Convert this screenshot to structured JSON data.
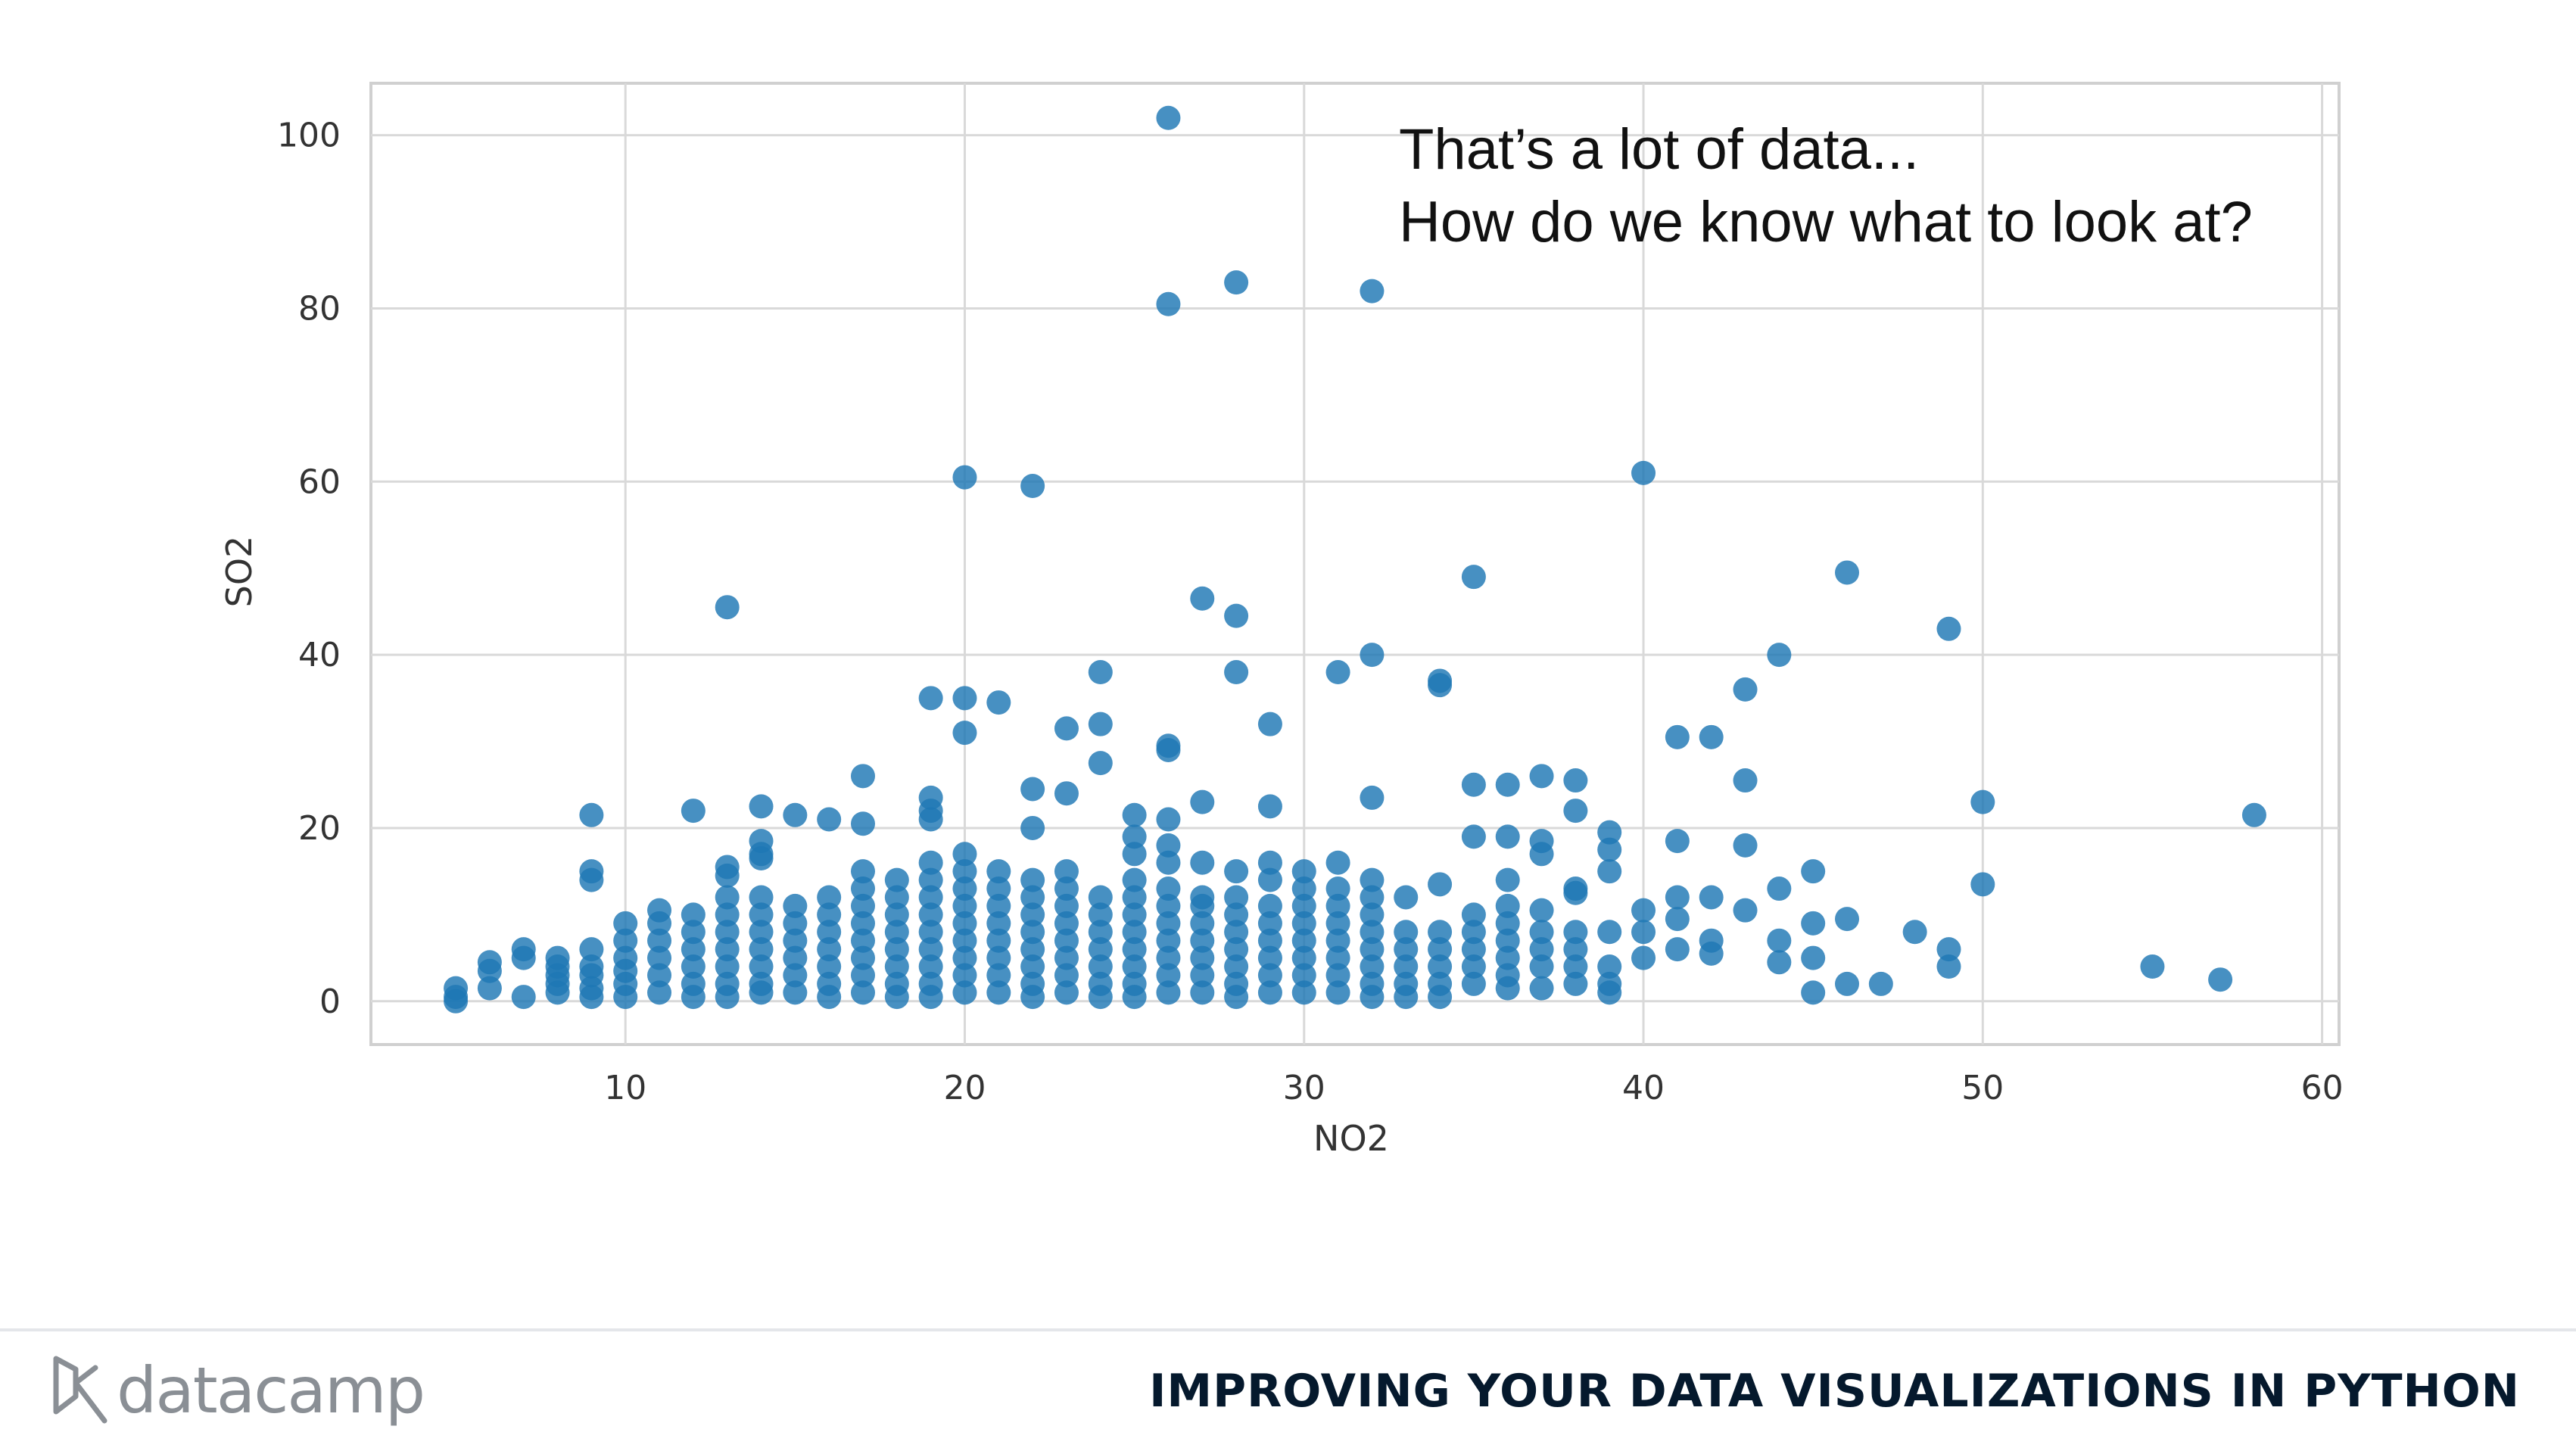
{
  "annotation": {
    "line1": "That’s a lot of data...",
    "line2": "How do we know what to look at?"
  },
  "footer": {
    "logo_text": "datacamp",
    "course_title": "IMPROVING YOUR DATA VISUALIZATIONS IN PYTHON"
  },
  "colors": {
    "point": "#1f77b4",
    "grid": "#d9d9d9",
    "axes_frame": "#d0d0d0",
    "tick_text": "#333333"
  },
  "chart_data": {
    "type": "scatter",
    "xlabel": "NO2",
    "ylabel": "SO2",
    "xlim": [
      2.5,
      60.5
    ],
    "ylim": [
      -5,
      106
    ],
    "xticks": [
      10,
      20,
      30,
      40,
      50,
      60
    ],
    "yticks": [
      0,
      20,
      40,
      60,
      80,
      100
    ],
    "grid": true,
    "series": [
      {
        "points": [
          [
            26,
            102
          ],
          [
            26,
            80.5
          ],
          [
            28,
            83
          ],
          [
            32,
            82
          ],
          [
            20,
            60.5
          ],
          [
            22,
            59.5
          ],
          [
            40,
            61
          ],
          [
            13,
            45.5
          ],
          [
            35,
            49
          ],
          [
            46,
            49.5
          ],
          [
            49,
            43
          ],
          [
            27,
            46.5
          ],
          [
            28,
            44.5
          ],
          [
            32,
            40
          ],
          [
            44,
            40
          ],
          [
            24,
            38
          ],
          [
            28,
            38
          ],
          [
            31,
            38
          ],
          [
            34,
            37
          ],
          [
            34,
            36.5
          ],
          [
            19,
            35
          ],
          [
            20,
            35
          ],
          [
            21,
            34.5
          ],
          [
            43,
            36
          ],
          [
            23,
            31.5
          ],
          [
            24,
            32
          ],
          [
            29,
            32
          ],
          [
            20,
            31
          ],
          [
            41,
            30.5
          ],
          [
            42,
            30.5
          ],
          [
            26,
            29.5
          ],
          [
            26,
            29
          ],
          [
            24,
            27.5
          ],
          [
            17,
            26
          ],
          [
            37,
            26
          ],
          [
            38,
            25.5
          ],
          [
            22,
            24.5
          ],
          [
            23,
            24
          ],
          [
            32,
            23.5
          ],
          [
            35,
            25
          ],
          [
            36,
            25
          ],
          [
            43,
            25.5
          ],
          [
            9,
            21.5
          ],
          [
            12,
            22
          ],
          [
            14,
            22.5
          ],
          [
            15,
            21.5
          ],
          [
            16,
            21
          ],
          [
            17,
            20.5
          ],
          [
            19,
            23.5
          ],
          [
            19,
            22
          ],
          [
            19,
            21
          ],
          [
            22,
            20
          ],
          [
            25,
            21.5
          ],
          [
            26,
            21
          ],
          [
            27,
            23
          ],
          [
            29,
            22.5
          ],
          [
            38,
            22
          ],
          [
            50,
            23
          ],
          [
            58,
            21.5
          ],
          [
            9,
            15
          ],
          [
            9,
            14
          ],
          [
            13,
            15.5
          ],
          [
            13,
            14.5
          ],
          [
            14,
            18.5
          ],
          [
            14,
            17
          ],
          [
            14,
            16.5
          ],
          [
            14,
            12
          ],
          [
            35,
            19
          ],
          [
            36,
            19
          ],
          [
            37,
            18.5
          ],
          [
            37,
            17
          ],
          [
            39,
            19.5
          ],
          [
            39,
            17.5
          ],
          [
            39,
            15
          ],
          [
            41,
            18.5
          ],
          [
            43,
            18
          ],
          [
            45,
            15
          ],
          [
            43,
            10.5
          ],
          [
            44,
            13
          ],
          [
            46,
            9.5
          ],
          [
            48,
            8
          ],
          [
            49,
            6
          ],
          [
            49,
            4
          ],
          [
            50,
            13.5
          ],
          [
            55,
            4
          ],
          [
            57,
            2.5
          ],
          [
            46,
            2
          ],
          [
            47,
            2
          ],
          [
            45,
            1
          ],
          [
            45,
            5
          ],
          [
            45,
            9
          ],
          [
            44,
            7
          ],
          [
            44,
            4.5
          ],
          [
            42,
            12
          ],
          [
            42,
            7
          ],
          [
            42,
            5.5
          ],
          [
            41,
            12
          ],
          [
            41,
            9.5
          ],
          [
            41,
            6
          ],
          [
            40,
            10.5
          ],
          [
            40,
            8
          ],
          [
            40,
            5
          ],
          [
            31,
            16
          ],
          [
            33,
            12
          ],
          [
            36,
            14
          ],
          [
            36,
            11
          ],
          [
            38,
            13
          ],
          [
            38,
            12.5
          ],
          [
            37,
            10.5
          ],
          [
            38,
            8
          ],
          [
            39,
            8
          ],
          [
            29,
            16
          ],
          [
            29,
            14
          ],
          [
            30,
            15
          ],
          [
            30,
            13
          ],
          [
            28,
            15
          ],
          [
            28,
            12
          ],
          [
            27,
            16
          ],
          [
            27,
            12
          ],
          [
            32,
            14
          ],
          [
            32,
            12
          ],
          [
            5,
            1.5
          ],
          [
            5,
            0.5
          ],
          [
            5,
            0
          ],
          [
            6,
            4.5
          ],
          [
            6,
            3.5
          ],
          [
            6,
            1.5
          ],
          [
            7,
            6
          ],
          [
            7,
            5
          ],
          [
            7,
            0.5
          ],
          [
            8,
            5
          ],
          [
            8,
            4
          ],
          [
            8,
            3
          ],
          [
            8,
            2
          ],
          [
            8,
            1
          ],
          [
            9,
            6
          ],
          [
            9,
            4
          ],
          [
            9,
            3
          ],
          [
            9,
            1.5
          ],
          [
            9,
            0.5
          ],
          [
            10,
            9
          ],
          [
            10,
            7
          ],
          [
            10,
            5
          ],
          [
            10,
            3.5
          ],
          [
            10,
            2
          ],
          [
            10,
            0.5
          ],
          [
            11,
            10.5
          ],
          [
            11,
            9
          ],
          [
            11,
            7
          ],
          [
            11,
            5
          ],
          [
            11,
            3
          ],
          [
            11,
            1
          ],
          [
            12,
            10
          ],
          [
            12,
            8
          ],
          [
            12,
            6
          ],
          [
            12,
            4
          ],
          [
            12,
            2
          ],
          [
            12,
            0.5
          ],
          [
            13,
            12
          ],
          [
            13,
            10
          ],
          [
            13,
            8
          ],
          [
            13,
            6
          ],
          [
            13,
            4
          ],
          [
            13,
            2
          ],
          [
            13,
            0.5
          ],
          [
            14,
            10
          ],
          [
            14,
            8
          ],
          [
            14,
            6
          ],
          [
            14,
            4
          ],
          [
            14,
            2
          ],
          [
            14,
            1
          ],
          [
            15,
            11
          ],
          [
            15,
            9
          ],
          [
            15,
            7
          ],
          [
            15,
            5
          ],
          [
            15,
            3
          ],
          [
            15,
            1
          ],
          [
            16,
            12
          ],
          [
            16,
            10
          ],
          [
            16,
            8
          ],
          [
            16,
            6
          ],
          [
            16,
            4
          ],
          [
            16,
            2
          ],
          [
            16,
            0.5
          ],
          [
            17,
            15
          ],
          [
            17,
            13
          ],
          [
            17,
            11
          ],
          [
            17,
            9
          ],
          [
            17,
            7
          ],
          [
            17,
            5
          ],
          [
            17,
            3
          ],
          [
            17,
            1
          ],
          [
            18,
            14
          ],
          [
            18,
            12
          ],
          [
            18,
            10
          ],
          [
            18,
            8
          ],
          [
            18,
            6
          ],
          [
            18,
            4
          ],
          [
            18,
            2
          ],
          [
            18,
            0.5
          ],
          [
            19,
            16
          ],
          [
            19,
            14
          ],
          [
            19,
            12
          ],
          [
            19,
            10
          ],
          [
            19,
            8
          ],
          [
            19,
            6
          ],
          [
            19,
            4
          ],
          [
            19,
            2
          ],
          [
            19,
            0.5
          ],
          [
            20,
            17
          ],
          [
            20,
            15
          ],
          [
            20,
            13
          ],
          [
            20,
            11
          ],
          [
            20,
            9
          ],
          [
            20,
            7
          ],
          [
            20,
            5
          ],
          [
            20,
            3
          ],
          [
            20,
            1
          ],
          [
            21,
            15
          ],
          [
            21,
            13
          ],
          [
            21,
            11
          ],
          [
            21,
            9
          ],
          [
            21,
            7
          ],
          [
            21,
            5
          ],
          [
            21,
            3
          ],
          [
            21,
            1
          ],
          [
            22,
            14
          ],
          [
            22,
            12
          ],
          [
            22,
            10
          ],
          [
            22,
            8
          ],
          [
            22,
            6
          ],
          [
            22,
            4
          ],
          [
            22,
            2
          ],
          [
            22,
            0.5
          ],
          [
            23,
            15
          ],
          [
            23,
            13
          ],
          [
            23,
            11
          ],
          [
            23,
            9
          ],
          [
            23,
            7
          ],
          [
            23,
            5
          ],
          [
            23,
            3
          ],
          [
            23,
            1
          ],
          [
            24,
            12
          ],
          [
            24,
            10
          ],
          [
            24,
            8
          ],
          [
            24,
            6
          ],
          [
            24,
            4
          ],
          [
            24,
            2
          ],
          [
            24,
            0.5
          ],
          [
            25,
            19
          ],
          [
            25,
            17
          ],
          [
            25,
            14
          ],
          [
            25,
            12
          ],
          [
            25,
            10
          ],
          [
            25,
            8
          ],
          [
            25,
            6
          ],
          [
            25,
            4
          ],
          [
            25,
            2
          ],
          [
            25,
            0.5
          ],
          [
            26,
            18
          ],
          [
            26,
            16
          ],
          [
            26,
            13
          ],
          [
            26,
            11
          ],
          [
            26,
            9
          ],
          [
            26,
            7
          ],
          [
            26,
            5
          ],
          [
            26,
            3
          ],
          [
            26,
            1
          ],
          [
            27,
            11
          ],
          [
            27,
            9
          ],
          [
            27,
            7
          ],
          [
            27,
            5
          ],
          [
            27,
            3
          ],
          [
            27,
            1
          ],
          [
            28,
            10
          ],
          [
            28,
            8
          ],
          [
            28,
            6
          ],
          [
            28,
            4
          ],
          [
            28,
            2
          ],
          [
            28,
            0.5
          ],
          [
            29,
            11
          ],
          [
            29,
            9
          ],
          [
            29,
            7
          ],
          [
            29,
            5
          ],
          [
            29,
            3
          ],
          [
            29,
            1
          ],
          [
            30,
            11
          ],
          [
            30,
            9
          ],
          [
            30,
            7
          ],
          [
            30,
            5
          ],
          [
            30,
            3
          ],
          [
            30,
            1
          ],
          [
            31,
            13
          ],
          [
            31,
            11
          ],
          [
            31,
            9
          ],
          [
            31,
            7
          ],
          [
            31,
            5
          ],
          [
            31,
            3
          ],
          [
            31,
            1
          ],
          [
            32,
            10
          ],
          [
            32,
            8
          ],
          [
            32,
            6
          ],
          [
            32,
            4
          ],
          [
            32,
            2
          ],
          [
            32,
            0.5
          ],
          [
            33,
            8
          ],
          [
            33,
            6
          ],
          [
            33,
            4
          ],
          [
            33,
            2
          ],
          [
            33,
            0.5
          ],
          [
            34,
            13.5
          ],
          [
            34,
            8
          ],
          [
            34,
            6
          ],
          [
            34,
            4
          ],
          [
            34,
            2
          ],
          [
            34,
            0.5
          ],
          [
            35,
            10
          ],
          [
            35,
            8
          ],
          [
            35,
            6
          ],
          [
            35,
            4
          ],
          [
            35,
            2
          ],
          [
            36,
            9
          ],
          [
            36,
            7
          ],
          [
            36,
            5
          ],
          [
            36,
            3
          ],
          [
            36,
            1.5
          ],
          [
            37,
            8
          ],
          [
            37,
            6
          ],
          [
            37,
            4
          ],
          [
            37,
            1.5
          ],
          [
            38,
            6
          ],
          [
            38,
            4
          ],
          [
            38,
            2
          ],
          [
            39,
            4
          ],
          [
            39,
            2
          ],
          [
            39,
            1
          ]
        ]
      }
    ]
  }
}
